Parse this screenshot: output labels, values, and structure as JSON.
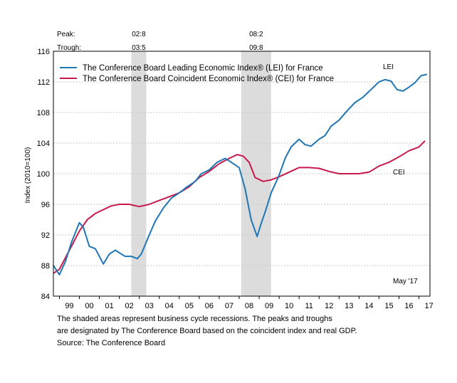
{
  "chart_data": {
    "type": "line",
    "ylabel": "Index (2010=100)",
    "ylim": [
      84,
      116
    ],
    "yticks": [
      84,
      88,
      92,
      96,
      100,
      104,
      108,
      112,
      116
    ],
    "xlim": [
      1998.7,
      2017.55
    ],
    "xticks": [
      {
        "label": "99",
        "year": 1999
      },
      {
        "label": "00",
        "year": 2000
      },
      {
        "label": "01",
        "year": 2001
      },
      {
        "label": "02",
        "year": 2002
      },
      {
        "label": "03",
        "year": 2003
      },
      {
        "label": "04",
        "year": 2004
      },
      {
        "label": "05",
        "year": 2005
      },
      {
        "label": "06",
        "year": 2006
      },
      {
        "label": "07",
        "year": 2007
      },
      {
        "label": "08",
        "year": 2008
      },
      {
        "label": "09",
        "year": 2009
      },
      {
        "label": "10",
        "year": 2010
      },
      {
        "label": "11",
        "year": 2011
      },
      {
        "label": "12",
        "year": 2012
      },
      {
        "label": "13",
        "year": 2013
      },
      {
        "label": "14",
        "year": 2014
      },
      {
        "label": "15",
        "year": 2015
      },
      {
        "label": "16",
        "year": 2016
      },
      {
        "label": "17",
        "year": 2017
      }
    ],
    "grid": true,
    "legend_position": "top-left",
    "series": [
      {
        "name": "The Conference Board Leading Economic Index® (LEI) for France",
        "label": "LEI",
        "color": "#1f77b4",
        "x": [
          1998.7,
          1999.0,
          1999.3,
          1999.6,
          2000.0,
          2000.2,
          2000.5,
          2000.8,
          2001.2,
          2001.5,
          2001.8,
          2002.1,
          2002.3,
          2002.6,
          2002.9,
          2003.1,
          2003.5,
          2003.8,
          2004.2,
          2004.6,
          2005.0,
          2005.4,
          2005.8,
          2006.1,
          2006.5,
          2006.9,
          2007.3,
          2007.6,
          2008.0,
          2008.3,
          2008.6,
          2008.9,
          2009.1,
          2009.3,
          2009.6,
          2010.0,
          2010.3,
          2010.6,
          2011.0,
          2011.3,
          2011.6,
          2012.0,
          2012.3,
          2012.6,
          2013.0,
          2013.4,
          2013.8,
          2014.2,
          2014.6,
          2015.0,
          2015.3,
          2015.6,
          2015.9,
          2016.2,
          2016.5,
          2016.8,
          2017.1,
          2017.4
        ],
        "values": [
          88.0,
          86.8,
          88.5,
          91.0,
          93.6,
          93.0,
          90.5,
          90.2,
          88.2,
          89.5,
          90.0,
          89.5,
          89.2,
          89.2,
          88.9,
          89.5,
          92.0,
          93.8,
          95.5,
          96.8,
          97.5,
          98.3,
          99.0,
          100.0,
          100.5,
          101.5,
          102.0,
          101.5,
          100.8,
          98.0,
          94.0,
          91.8,
          93.5,
          95.0,
          97.5,
          99.8,
          102.0,
          103.5,
          104.5,
          103.8,
          103.6,
          104.5,
          105.0,
          106.2,
          107.0,
          108.2,
          109.3,
          110.0,
          111.0,
          112.0,
          112.3,
          112.1,
          111.0,
          110.8,
          111.3,
          111.9,
          112.8,
          113.0
        ]
      },
      {
        "name": "The Conference Board Coincident Economic Index® (CEI) for France",
        "label": "CEI",
        "color": "#c8194b",
        "x": [
          1998.7,
          1999.0,
          1999.3,
          1999.6,
          2000.0,
          2000.4,
          2000.8,
          2001.2,
          2001.6,
          2002.0,
          2002.5,
          2003.0,
          2003.5,
          2004.0,
          2004.5,
          2005.0,
          2005.5,
          2006.0,
          2006.5,
          2007.0,
          2007.5,
          2007.9,
          2008.2,
          2008.5,
          2008.8,
          2009.2,
          2009.6,
          2010.0,
          2010.5,
          2011.0,
          2011.5,
          2012.0,
          2012.5,
          2013.0,
          2013.5,
          2014.0,
          2014.5,
          2015.0,
          2015.5,
          2016.0,
          2016.5,
          2017.0,
          2017.3
        ],
        "values": [
          87.0,
          87.5,
          89.0,
          90.5,
          92.5,
          94.0,
          94.8,
          95.3,
          95.8,
          96.0,
          96.0,
          95.7,
          96.0,
          96.5,
          97.0,
          97.5,
          98.3,
          99.5,
          100.3,
          101.3,
          102.0,
          102.5,
          102.3,
          101.5,
          99.5,
          99.0,
          99.2,
          99.6,
          100.2,
          100.8,
          100.8,
          100.7,
          100.3,
          100.0,
          100.0,
          100.0,
          100.2,
          101.0,
          101.5,
          102.2,
          103.0,
          103.5,
          104.3
        ]
      }
    ],
    "recessions": [
      {
        "peak": "02:8",
        "trough": "03:5",
        "start": 2002.6,
        "end": 2003.35
      },
      {
        "peak": "08:2",
        "trough": "09:8",
        "start": 2008.1,
        "end": 2009.6
      }
    ],
    "peak_label": "Peak:",
    "trough_label": "Trough:",
    "date_note": "May '17"
  },
  "footnotes": {
    "line1": "The shaded areas represent business cycle recessions. The peaks and troughs",
    "line2": "are designated by The Conference Board based on the coincident index and real GDP.",
    "line3": "Source: The Conference Board"
  }
}
